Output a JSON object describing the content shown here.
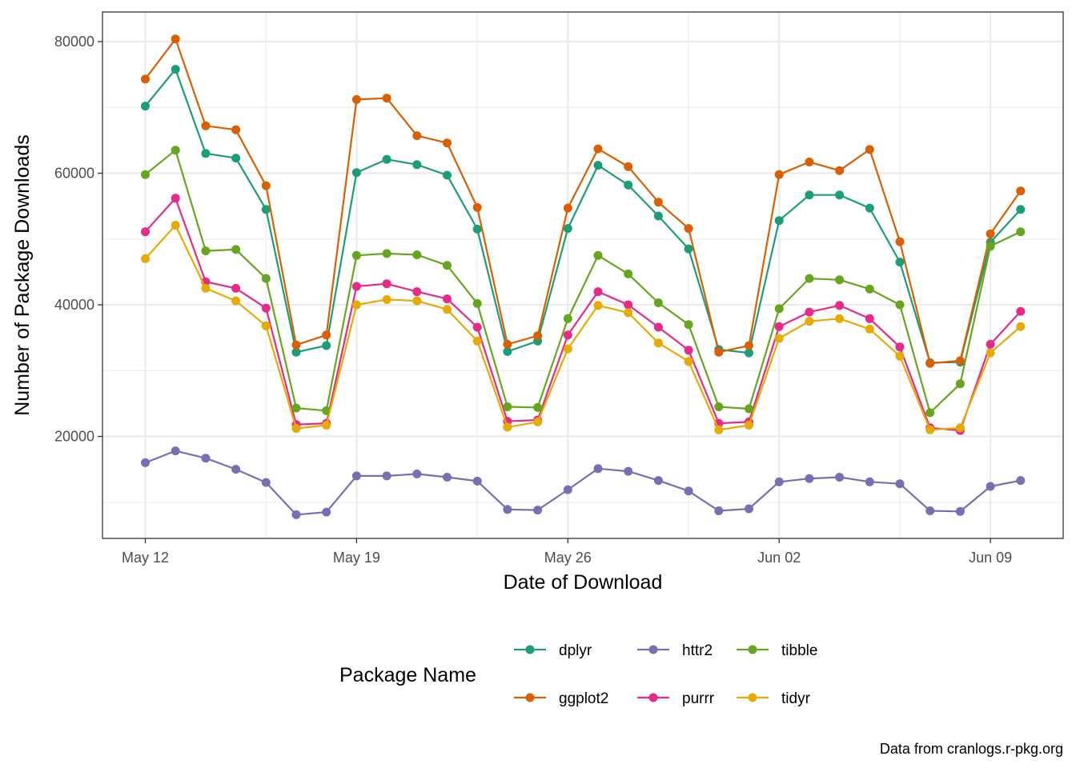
{
  "chart_data": {
    "type": "line",
    "xlabel": "Date of Download",
    "ylabel": "Number of Package Downloads",
    "caption": "Data from cranlogs.r-pkg.org",
    "x_ticks": [
      "May 12",
      "May 19",
      "May 26",
      "Jun 02",
      "Jun 09"
    ],
    "y_ticks": [
      "20000",
      "40000",
      "60000",
      "80000"
    ],
    "ylim": [
      4500,
      84500
    ],
    "grid": true,
    "legend": {
      "title": "Package Name",
      "position": "bottom"
    },
    "x": [
      "2024-05-12",
      "2024-05-13",
      "2024-05-14",
      "2024-05-15",
      "2024-05-16",
      "2024-05-17",
      "2024-05-18",
      "2024-05-19",
      "2024-05-20",
      "2024-05-21",
      "2024-05-22",
      "2024-05-23",
      "2024-05-24",
      "2024-05-25",
      "2024-05-26",
      "2024-05-27",
      "2024-05-28",
      "2024-05-29",
      "2024-05-30",
      "2024-05-31",
      "2024-06-01",
      "2024-06-02",
      "2024-06-03",
      "2024-06-04",
      "2024-06-05",
      "2024-06-06",
      "2024-06-07",
      "2024-06-08",
      "2024-06-09",
      "2024-06-10"
    ],
    "series": [
      {
        "name": "dplyr",
        "color": "#1B9E77",
        "values": [
          70200,
          75800,
          63000,
          62300,
          54500,
          32800,
          33800,
          60100,
          62100,
          61300,
          59700,
          51500,
          32900,
          34500,
          51600,
          61200,
          58200,
          53500,
          48500,
          33200,
          32700,
          52800,
          56700,
          56700,
          54700,
          46500,
          31200,
          31300,
          49500,
          54500
        ]
      },
      {
        "name": "ggplot2",
        "color": "#D95F02",
        "values": [
          74300,
          80400,
          67200,
          66600,
          58100,
          33900,
          35400,
          71200,
          71400,
          65700,
          64600,
          54800,
          34000,
          35300,
          54700,
          63700,
          61000,
          55600,
          51600,
          32800,
          33800,
          59800,
          61700,
          60400,
          63600,
          49600,
          31100,
          31500,
          50800,
          57300
        ]
      },
      {
        "name": "httr2",
        "color": "#7570B3",
        "values": [
          16000,
          17800,
          16700,
          15000,
          13000,
          8100,
          8500,
          14000,
          14000,
          14300,
          13800,
          13200,
          8900,
          8800,
          11900,
          15100,
          14700,
          13300,
          11700,
          8700,
          9000,
          13100,
          13600,
          13800,
          13100,
          12800,
          8700,
          8600,
          12400,
          13300
        ]
      },
      {
        "name": "purrr",
        "color": "#E7298A",
        "values": [
          51100,
          56200,
          43500,
          42500,
          39500,
          21800,
          22000,
          42800,
          43200,
          42000,
          40900,
          36600,
          22300,
          22500,
          35400,
          42000,
          40000,
          36600,
          33100,
          22000,
          22200,
          36700,
          38900,
          39900,
          37900,
          33600,
          21300,
          20900,
          34000,
          39000
        ]
      },
      {
        "name": "tibble",
        "color": "#66A61E",
        "values": [
          59800,
          63500,
          48200,
          48400,
          44000,
          24300,
          23900,
          47500,
          47800,
          47600,
          46000,
          40200,
          24500,
          24400,
          37900,
          47500,
          44700,
          40300,
          37000,
          24500,
          24200,
          39400,
          44000,
          43800,
          42400,
          40000,
          23600,
          28000,
          48900,
          51100
        ]
      },
      {
        "name": "tidyr",
        "color": "#E6AB02",
        "values": [
          47000,
          52100,
          42500,
          40600,
          36800,
          21200,
          21700,
          40000,
          40800,
          40600,
          39300,
          34500,
          21400,
          22200,
          33300,
          39900,
          38800,
          34200,
          31400,
          21000,
          21700,
          34900,
          37500,
          37900,
          36300,
          32200,
          21000,
          21300,
          32700,
          36700
        ]
      }
    ]
  }
}
